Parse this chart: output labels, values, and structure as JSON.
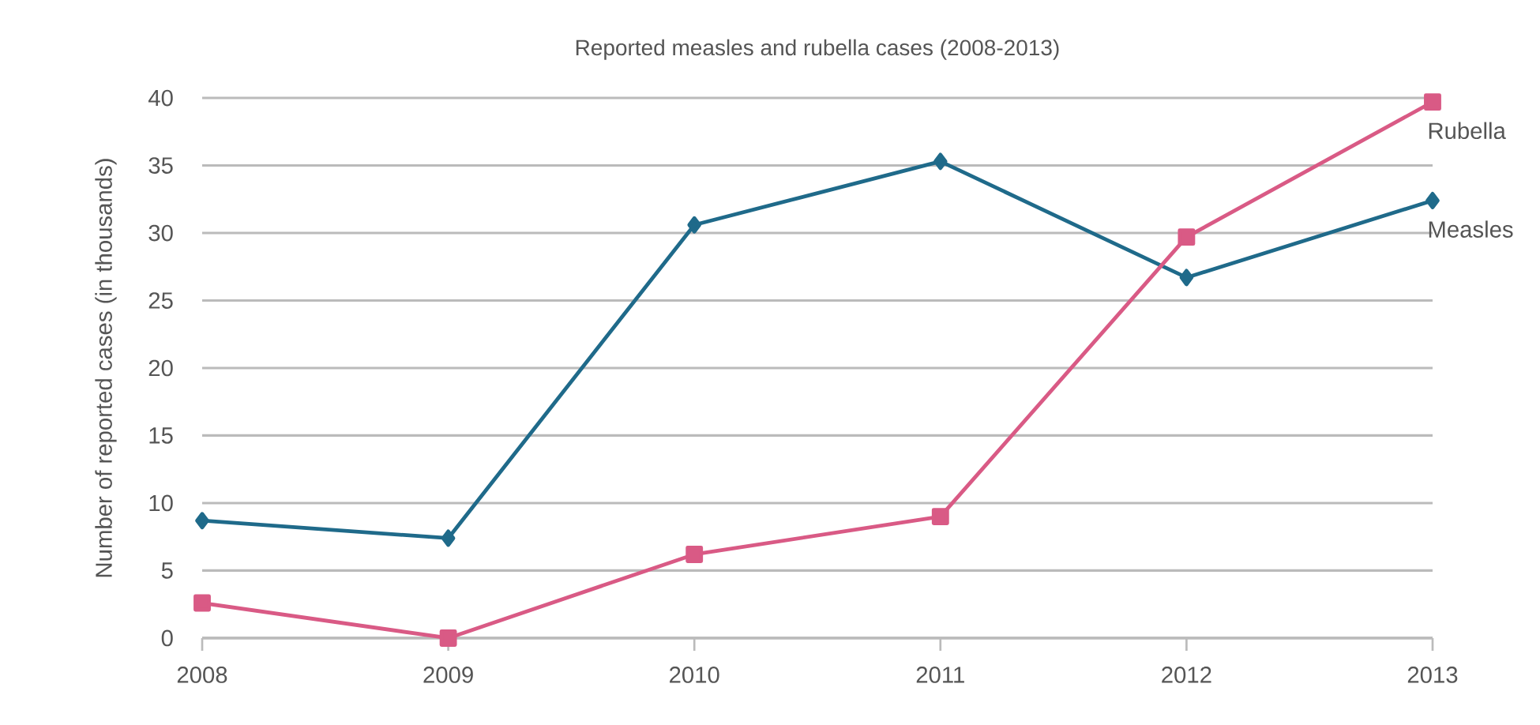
{
  "chart_data": {
    "type": "line",
    "title": "Reported measles and rubella cases (2008-2013)",
    "ylabel": "Number of reported cases (in thousands)",
    "categories": [
      "2008",
      "2009",
      "2010",
      "2011",
      "2012",
      "2013"
    ],
    "series": [
      {
        "name": "Measles",
        "color": "#1f6a8a",
        "marker": "diamond",
        "values": [
          8.7,
          7.4,
          30.6,
          35.3,
          26.7,
          32.4
        ]
      },
      {
        "name": "Rubella",
        "color": "#d95a85",
        "marker": "square",
        "values": [
          2.6,
          0,
          6.2,
          9.0,
          29.7,
          39.7
        ]
      }
    ],
    "ylim": [
      0,
      40
    ],
    "yticks": [
      0,
      5,
      10,
      15,
      20,
      25,
      30,
      35,
      40
    ],
    "grid": "y",
    "legend": false
  }
}
